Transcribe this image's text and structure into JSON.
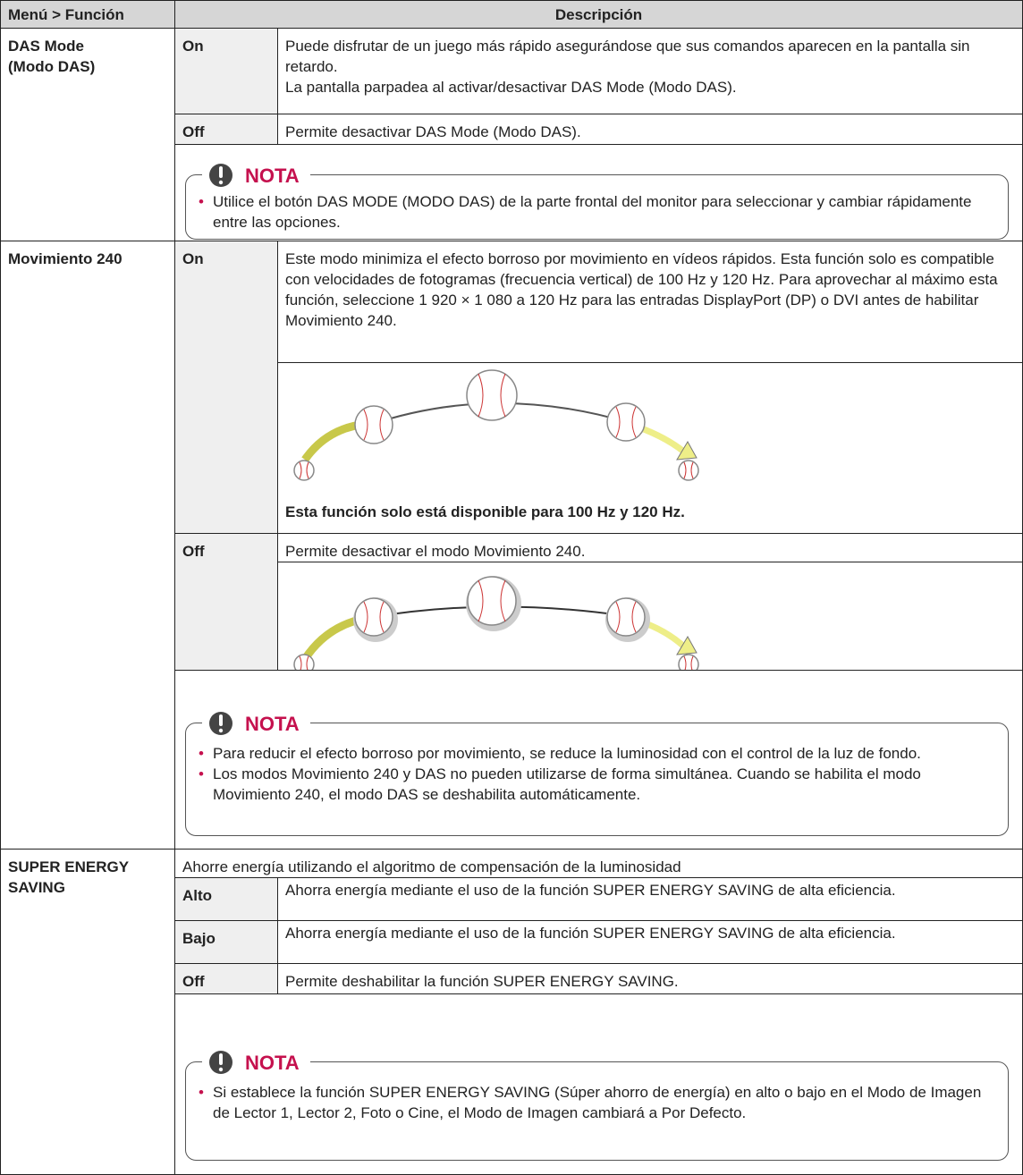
{
  "header": {
    "menu": "Menú > Función",
    "description": "Descripción"
  },
  "sections": [
    {
      "name_lines": [
        "DAS Mode",
        "(Modo DAS)"
      ],
      "options": [
        {
          "label": "On",
          "paragraphs": [
            "Puede disfrutar de un juego más rápido asegurándose que sus comandos aparecen en la pantalla sin retardo.",
            "La pantalla parpadea al activar/desactivar DAS Mode (Modo DAS)."
          ]
        },
        {
          "label": "Off",
          "paragraphs": [
            "Permite desactivar DAS Mode (Modo DAS)."
          ]
        }
      ],
      "note": {
        "title": "NOTA",
        "items": [
          "Utilice el botón DAS MODE (MODO DAS) de la parte frontal del monitor para seleccionar y cambiar rápidamente entre las opciones."
        ]
      }
    },
    {
      "name_lines": [
        "Movimiento 240"
      ],
      "options": [
        {
          "label": "On",
          "paragraphs": [
            "Este modo minimiza el efecto borroso por movimiento en vídeos rápidos. Esta función solo es compatible con velocidades de fotogramas (frecuencia vertical) de 100 Hz y 120 Hz. Para aprovechar al máximo esta función, seleccione 1 920 × 1 080 a 120 Hz para las entradas DisplayPort (DP) o DVI antes de habilitar Movimiento 240."
          ],
          "caption": "Esta función solo está disponible para 100 Hz y 120 Hz."
        },
        {
          "label": "Off",
          "paragraphs": [
            "Permite desactivar el modo Movimiento 240."
          ]
        }
      ],
      "note": {
        "title": "NOTA",
        "items": [
          "Para reducir el efecto borroso por movimiento, se reduce la luminosidad con el control de la luz de fondo.",
          "Los modos Movimiento 240 y DAS no pueden utilizarse de forma simultánea. Cuando se habilita el modo Movimiento 240, el modo DAS se deshabilita automáticamente."
        ]
      }
    },
    {
      "name_lines": [
        "SUPER ENERGY",
        "SAVING"
      ],
      "intro": "Ahorre energía utilizando el algoritmo de compensación de la luminosidad",
      "options": [
        {
          "label": "Alto",
          "paragraphs": [
            "Ahorra energía mediante el uso de la función SUPER ENERGY SAVING de alta eficiencia."
          ]
        },
        {
          "label": "Bajo",
          "paragraphs": [
            "Ahorra energía mediante el uso de la función SUPER ENERGY SAVING de alta eficiencia."
          ]
        },
        {
          "label": "Off",
          "paragraphs": [
            "Permite deshabilitar la función SUPER ENERGY SAVING."
          ]
        }
      ],
      "note": {
        "title": "NOTA",
        "items": [
          "Si establece la función SUPER ENERGY SAVING (Súper ahorro de energía) en alto o bajo en el Modo de Imagen de Lector 1, Lector 2, Foto o Cine, el Modo de Imagen cambiará a Por Defecto."
        ]
      }
    }
  ]
}
